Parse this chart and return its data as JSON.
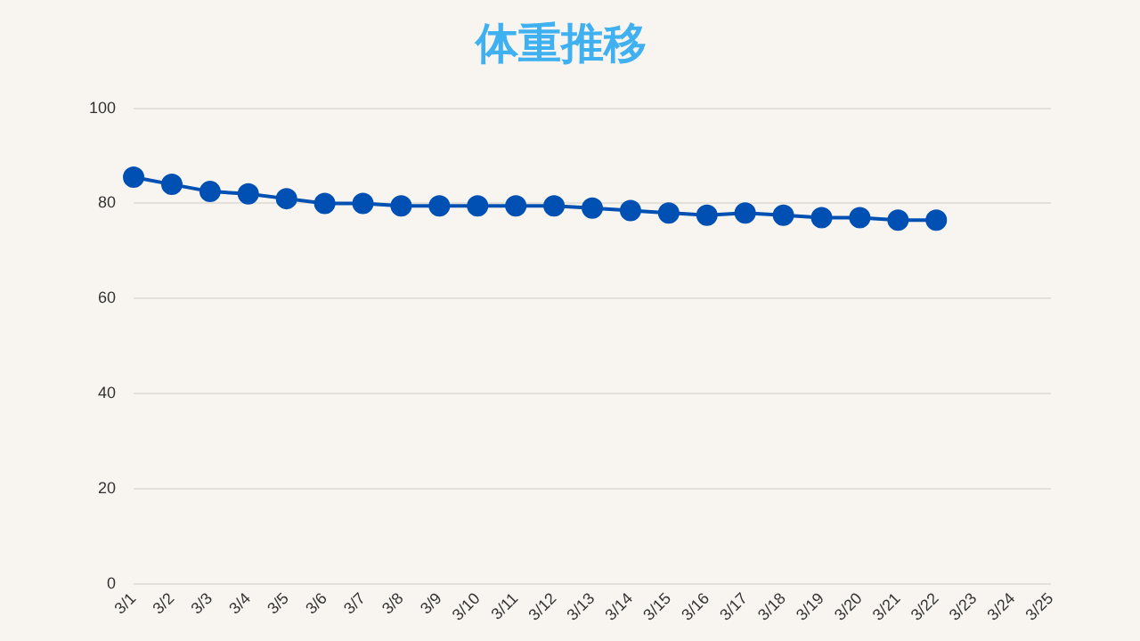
{
  "chart_data": {
    "type": "line",
    "title": "体重推移",
    "categories": [
      "3/1",
      "3/2",
      "3/3",
      "3/4",
      "3/5",
      "3/6",
      "3/7",
      "3/8",
      "3/9",
      "3/10",
      "3/11",
      "3/12",
      "3/13",
      "3/14",
      "3/15",
      "3/16",
      "3/17",
      "3/18",
      "3/19",
      "3/20",
      "3/21",
      "3/22",
      "3/23",
      "3/24",
      "3/25"
    ],
    "series": [
      {
        "color": "#0050b4",
        "values": [
          85.5,
          84,
          82.5,
          82,
          81,
          80,
          80,
          79.5,
          79.5,
          79.5,
          79.5,
          79.5,
          79,
          78.5,
          78,
          77.5,
          78,
          77.5,
          77,
          77,
          76.5,
          76.5,
          null,
          null,
          null
        ]
      }
    ],
    "ylim": [
      0,
      100
    ],
    "yticks": [
      0,
      20,
      40,
      60,
      80,
      100
    ],
    "grid": "y",
    "legend": false,
    "marker": "circle",
    "line_style": "solid"
  }
}
